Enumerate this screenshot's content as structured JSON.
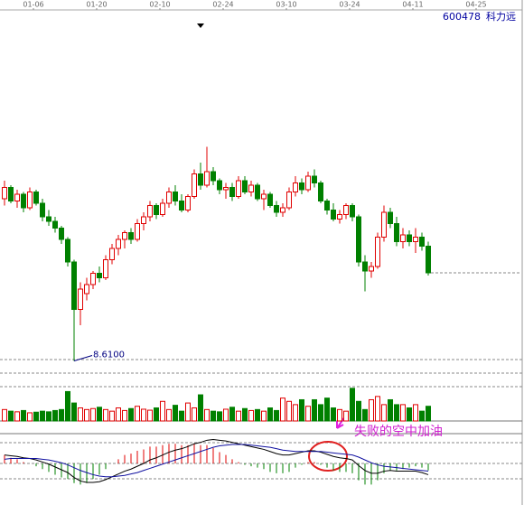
{
  "header": {
    "code": "600478",
    "name": "科力远"
  },
  "chart_data": {
    "type": "candlestick",
    "categories": [
      null,
      null,
      null,
      null,
      null,
      "01-06",
      null,
      null,
      null,
      null,
      null,
      null,
      null,
      null,
      null,
      "01-20",
      null,
      null,
      null,
      null,
      null,
      null,
      null,
      null,
      null,
      "02-10",
      null,
      null,
      null,
      null,
      null,
      null,
      null,
      null,
      null,
      "02-24",
      null,
      null,
      null,
      null,
      null,
      null,
      null,
      null,
      null,
      "03-10",
      null,
      null,
      null,
      null,
      null,
      null,
      null,
      null,
      null,
      "03-24",
      null,
      null,
      null,
      null,
      null,
      null,
      null,
      null,
      null,
      "04-11",
      null,
      null,
      null,
      null,
      null,
      null,
      null,
      null,
      null,
      "04-25"
    ],
    "open": [
      12.2,
      12.45,
      12.15,
      12.3,
      12.0,
      12.35,
      12.1,
      11.8,
      11.7,
      11.55,
      11.3,
      10.8,
      9.75,
      10.1,
      10.3,
      10.55,
      10.45,
      10.85,
      11.1,
      11.3,
      11.45,
      11.3,
      11.65,
      11.8,
      12.05,
      11.85,
      12.1,
      12.35,
      12.15,
      11.95,
      12.25,
      12.75,
      12.5,
      12.8,
      12.6,
      12.4,
      12.45,
      12.25,
      12.6,
      12.35,
      12.5,
      12.2,
      12.3,
      12.05,
      11.9,
      12.0,
      12.35,
      12.55,
      12.4,
      12.7,
      12.55,
      12.15,
      11.95,
      11.75,
      11.85,
      12.05,
      11.8,
      10.8,
      10.6,
      10.7,
      11.35,
      11.9,
      11.65,
      11.25,
      11.4,
      11.25,
      11.35,
      11.15,
      null,
      null,
      null,
      null,
      null,
      null,
      null,
      null
    ],
    "high": [
      12.6,
      12.5,
      12.4,
      12.35,
      12.45,
      12.4,
      12.2,
      11.95,
      11.8,
      11.6,
      11.35,
      10.85,
      10.35,
      10.45,
      10.6,
      10.7,
      10.95,
      11.2,
      11.4,
      11.5,
      11.55,
      11.75,
      11.9,
      12.15,
      12.1,
      12.2,
      12.45,
      12.5,
      12.3,
      12.3,
      12.85,
      13.0,
      13.35,
      12.9,
      12.65,
      12.55,
      12.55,
      12.7,
      12.7,
      12.6,
      12.55,
      12.4,
      12.35,
      12.15,
      12.1,
      12.45,
      12.7,
      12.65,
      12.8,
      12.85,
      12.6,
      12.2,
      12.1,
      11.95,
      12.1,
      12.1,
      11.85,
      10.95,
      10.8,
      11.45,
      12.05,
      12.0,
      11.8,
      11.55,
      11.5,
      11.55,
      11.45,
      11.25,
      null,
      null,
      null,
      null,
      null,
      null,
      null,
      null
    ],
    "low": [
      12.05,
      12.1,
      12.0,
      11.9,
      11.95,
      12.05,
      11.7,
      11.6,
      11.45,
      11.2,
      10.7,
      8.61,
      9.4,
      9.95,
      10.2,
      10.35,
      10.4,
      10.75,
      10.95,
      11.1,
      11.2,
      11.25,
      11.5,
      11.7,
      11.75,
      11.8,
      12.0,
      12.05,
      11.9,
      11.9,
      12.2,
      12.4,
      12.45,
      12.5,
      12.3,
      12.2,
      12.15,
      12.2,
      12.3,
      12.25,
      12.15,
      11.95,
      12.0,
      11.8,
      11.8,
      11.95,
      12.25,
      12.3,
      12.35,
      12.45,
      12.1,
      11.85,
      11.7,
      11.65,
      11.75,
      11.7,
      10.7,
      10.15,
      10.45,
      10.65,
      11.25,
      11.55,
      11.15,
      11.1,
      11.15,
      11.0,
      11.05,
      10.5,
      null,
      null,
      null,
      null,
      null,
      null,
      null,
      null
    ],
    "close": [
      12.45,
      12.15,
      12.3,
      12.0,
      12.35,
      12.1,
      11.8,
      11.7,
      11.55,
      11.3,
      10.8,
      9.75,
      10.2,
      10.3,
      10.55,
      10.45,
      10.85,
      11.1,
      11.3,
      11.45,
      11.3,
      11.65,
      11.8,
      12.05,
      11.85,
      12.1,
      12.35,
      12.15,
      11.95,
      12.25,
      12.75,
      12.5,
      12.8,
      12.6,
      12.4,
      12.45,
      12.25,
      12.6,
      12.35,
      12.5,
      12.2,
      12.3,
      12.05,
      11.9,
      12.0,
      12.35,
      12.55,
      12.4,
      12.7,
      12.55,
      12.15,
      11.95,
      11.75,
      11.85,
      12.05,
      11.8,
      10.8,
      10.6,
      10.7,
      11.35,
      11.9,
      11.65,
      11.25,
      11.4,
      11.25,
      11.35,
      11.15,
      10.56,
      null,
      null,
      null,
      null,
      null,
      null,
      null,
      null
    ],
    "up_color": "#e00000",
    "down_color": "#008000",
    "ylim": [
      8.5,
      16.4
    ],
    "low_label": {
      "value": 8.61,
      "label": "8.6100"
    },
    "volume": {
      "values": [
        3.5,
        3.0,
        2.8,
        3.2,
        2.5,
        2.7,
        3.0,
        2.8,
        3.2,
        3.5,
        9.0,
        5.5,
        4.0,
        3.5,
        3.8,
        4.2,
        3.5,
        3.0,
        4.0,
        3.2,
        3.8,
        4.5,
        3.6,
        3.3,
        4.0,
        6.0,
        3.5,
        4.8,
        3.0,
        5.5,
        4.0,
        8.0,
        3.5,
        3.0,
        2.8,
        3.6,
        4.2,
        3.0,
        3.8,
        3.2,
        3.5,
        3.0,
        4.0,
        3.2,
        7.0,
        6.0,
        5.0,
        6.5,
        4.5,
        6.5,
        5.0,
        7.0,
        4.0,
        3.5,
        3.0,
        10.0,
        6.0,
        3.5,
        6.5,
        7.5,
        5.0,
        6.5,
        5.0,
        5.0,
        4.0,
        5.0,
        3.0,
        4.5,
        null,
        null,
        null,
        null,
        null,
        null,
        null,
        null
      ],
      "ylim": [
        0,
        10.5
      ]
    },
    "macd": {
      "dif": [
        0.12,
        0.11,
        0.1,
        0.08,
        0.07,
        0.05,
        0.02,
        -0.01,
        -0.05,
        -0.09,
        -0.13,
        -0.2,
        -0.25,
        -0.27,
        -0.27,
        -0.26,
        -0.23,
        -0.19,
        -0.15,
        -0.11,
        -0.08,
        -0.04,
        0.0,
        0.05,
        0.08,
        0.12,
        0.16,
        0.19,
        0.21,
        0.24,
        0.28,
        0.3,
        0.33,
        0.34,
        0.33,
        0.32,
        0.3,
        0.28,
        0.26,
        0.24,
        0.22,
        0.2,
        0.17,
        0.14,
        0.12,
        0.12,
        0.14,
        0.16,
        0.18,
        0.18,
        0.16,
        0.13,
        0.1,
        0.08,
        0.07,
        0.05,
        -0.03,
        -0.1,
        -0.14,
        -0.14,
        -0.11,
        -0.1,
        -0.11,
        -0.11,
        -0.11,
        -0.11,
        -0.13,
        -0.16,
        null,
        null,
        null,
        null,
        null,
        null,
        null,
        null
      ],
      "dea": [
        0.06,
        0.07,
        0.07,
        0.07,
        0.07,
        0.07,
        0.06,
        0.05,
        0.03,
        0.01,
        -0.02,
        -0.06,
        -0.1,
        -0.13,
        -0.16,
        -0.18,
        -0.19,
        -0.19,
        -0.18,
        -0.17,
        -0.15,
        -0.13,
        -0.1,
        -0.07,
        -0.04,
        -0.01,
        0.02,
        0.05,
        0.08,
        0.11,
        0.14,
        0.17,
        0.2,
        0.23,
        0.25,
        0.26,
        0.27,
        0.27,
        0.27,
        0.26,
        0.25,
        0.24,
        0.23,
        0.21,
        0.19,
        0.18,
        0.17,
        0.17,
        0.17,
        0.17,
        0.17,
        0.16,
        0.15,
        0.14,
        0.13,
        0.12,
        0.09,
        0.05,
        0.01,
        -0.02,
        -0.04,
        -0.05,
        -0.06,
        -0.07,
        -0.08,
        -0.09,
        -0.1,
        -0.11,
        null,
        null,
        null,
        null,
        null,
        null,
        null,
        null
      ],
      "hist": [
        0.12,
        0.08,
        0.06,
        0.02,
        0,
        -0.04,
        -0.08,
        -0.12,
        -0.16,
        -0.2,
        -0.22,
        -0.28,
        -0.3,
        -0.28,
        -0.22,
        -0.16,
        -0.08,
        0,
        0.06,
        0.12,
        0.14,
        0.18,
        0.2,
        0.24,
        0.24,
        0.26,
        0.28,
        0.28,
        0.26,
        0.26,
        0.28,
        0.26,
        0.26,
        0.22,
        0.16,
        0.12,
        0.06,
        0.02,
        -0.02,
        -0.04,
        -0.06,
        -0.08,
        -0.12,
        -0.14,
        -0.14,
        -0.12,
        -0.06,
        -0.02,
        0.02,
        0.02,
        -0.02,
        -0.06,
        -0.1,
        -0.12,
        -0.12,
        -0.14,
        -0.24,
        -0.3,
        -0.3,
        -0.24,
        -0.14,
        -0.1,
        -0.1,
        -0.08,
        -0.06,
        -0.04,
        -0.06,
        -0.1,
        null,
        null,
        null,
        null,
        null,
        null,
        null,
        null
      ],
      "ylim": [
        -0.45,
        0.45
      ],
      "dif_color": "#000000",
      "dea_color": "#1010a0"
    },
    "annotation": "失败的空中加油"
  }
}
